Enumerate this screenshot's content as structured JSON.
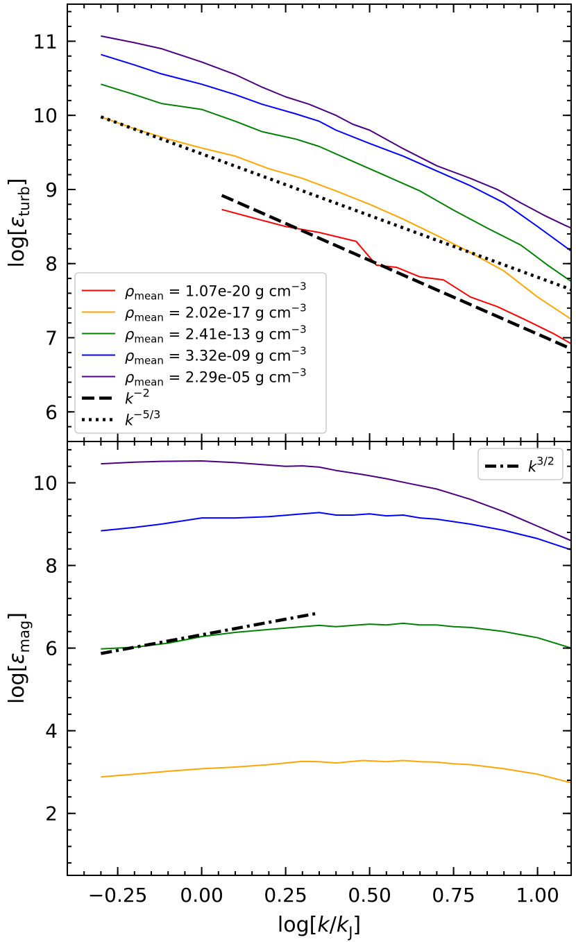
{
  "chart_data": [
    {
      "type": "line",
      "panel": "top",
      "xlabel": "log[k/kJ]",
      "ylabel": "log[εturb]",
      "xlim": [
        -0.4,
        1.1
      ],
      "ylim": [
        5.6,
        11.5
      ],
      "yticks": [
        6,
        7,
        8,
        9,
        10,
        11
      ],
      "xticks": [
        -0.25,
        0.0,
        0.25,
        0.5,
        0.75,
        1.0
      ],
      "legend_position": "lower-left",
      "series": [
        {
          "name": "ρmean = 1.07e-20 g cm−3",
          "color": "#ff0000",
          "style": "solid",
          "x": [
            0.06,
            0.15,
            0.25,
            0.35,
            0.46,
            0.52,
            0.58,
            0.65,
            0.72,
            0.8,
            0.88,
            0.96,
            1.05,
            1.1
          ],
          "y": [
            8.73,
            8.62,
            8.5,
            8.42,
            8.3,
            7.98,
            7.95,
            7.82,
            7.78,
            7.55,
            7.42,
            7.25,
            7.05,
            6.92
          ]
        },
        {
          "name": "ρmean = 2.02e-17 g cm−3",
          "color": "#ffa500",
          "style": "solid",
          "x": [
            -0.3,
            -0.2,
            -0.1,
            0.0,
            0.1,
            0.2,
            0.3,
            0.4,
            0.5,
            0.6,
            0.7,
            0.8,
            0.9,
            1.0,
            1.1
          ],
          "y": [
            9.98,
            9.82,
            9.68,
            9.56,
            9.45,
            9.28,
            9.15,
            8.98,
            8.8,
            8.6,
            8.38,
            8.15,
            7.9,
            7.55,
            7.25
          ]
        },
        {
          "name": "ρmean = 2.41e-13 g cm−3",
          "color": "#008000",
          "style": "solid",
          "x": [
            -0.3,
            -0.2,
            -0.12,
            0.0,
            0.1,
            0.18,
            0.28,
            0.35,
            0.45,
            0.55,
            0.65,
            0.75,
            0.85,
            0.95,
            1.03,
            1.1
          ],
          "y": [
            10.42,
            10.28,
            10.16,
            10.08,
            9.92,
            9.78,
            9.68,
            9.58,
            9.38,
            9.18,
            8.98,
            8.72,
            8.48,
            8.25,
            7.98,
            7.76
          ]
        },
        {
          "name": "ρmean = 3.32e-09 g cm−3",
          "color": "#0000ff",
          "style": "solid",
          "x": [
            -0.3,
            -0.2,
            -0.12,
            0.0,
            0.1,
            0.18,
            0.28,
            0.35,
            0.4,
            0.5,
            0.6,
            0.7,
            0.8,
            0.9,
            1.0,
            1.1
          ],
          "y": [
            10.82,
            10.68,
            10.56,
            10.42,
            10.28,
            10.15,
            10.02,
            9.92,
            9.8,
            9.62,
            9.45,
            9.25,
            9.05,
            8.82,
            8.5,
            8.17
          ]
        },
        {
          "name": "ρmean = 2.29e-05 g cm−3",
          "color": "#4b0082",
          "style": "solid",
          "x": [
            -0.3,
            -0.2,
            -0.12,
            0.0,
            0.1,
            0.18,
            0.25,
            0.32,
            0.4,
            0.45,
            0.5,
            0.6,
            0.7,
            0.8,
            0.88,
            0.95,
            1.02,
            1.08,
            1.1
          ],
          "y": [
            11.07,
            10.98,
            10.9,
            10.72,
            10.55,
            10.38,
            10.25,
            10.15,
            10.0,
            9.88,
            9.8,
            9.55,
            9.32,
            9.15,
            9.0,
            8.82,
            8.65,
            8.52,
            8.48
          ]
        },
        {
          "name": "k−2",
          "color": "#000000",
          "style": "dashed",
          "x": [
            0.06,
            1.1
          ],
          "y": [
            8.92,
            6.85
          ]
        },
        {
          "name": "k−5/3",
          "color": "#000000",
          "style": "dotted",
          "x": [
            -0.3,
            1.1
          ],
          "y": [
            9.98,
            7.65
          ]
        }
      ]
    },
    {
      "type": "line",
      "panel": "bottom",
      "xlabel": "log[k/kJ]",
      "ylabel": "log[εmag]",
      "xlim": [
        -0.4,
        1.1
      ],
      "ylim": [
        0.5,
        11.0
      ],
      "yticks": [
        2,
        4,
        6,
        8,
        10
      ],
      "xticks": [
        -0.25,
        0.0,
        0.25,
        0.5,
        0.75,
        1.0
      ],
      "xticklabels": [
        "−0.25",
        "0.00",
        "0.25",
        "0.50",
        "0.75",
        "1.00"
      ],
      "legend_position": "upper-right",
      "series": [
        {
          "name": "",
          "color": "#4b0082",
          "style": "solid",
          "x": [
            -0.3,
            -0.2,
            -0.12,
            0.0,
            0.1,
            0.18,
            0.25,
            0.3,
            0.35,
            0.4,
            0.48,
            0.55,
            0.62,
            0.7,
            0.8,
            0.9,
            1.0,
            1.1
          ],
          "y": [
            10.46,
            10.5,
            10.52,
            10.53,
            10.49,
            10.44,
            10.4,
            10.41,
            10.38,
            10.3,
            10.2,
            10.1,
            9.98,
            9.85,
            9.6,
            9.3,
            8.95,
            8.6
          ]
        },
        {
          "name": "",
          "color": "#0000ff",
          "style": "solid",
          "x": [
            -0.3,
            -0.2,
            -0.12,
            0.0,
            0.1,
            0.2,
            0.3,
            0.35,
            0.4,
            0.45,
            0.5,
            0.55,
            0.6,
            0.65,
            0.7,
            0.8,
            0.9,
            1.0,
            1.1
          ],
          "y": [
            8.84,
            8.92,
            9.0,
            9.15,
            9.15,
            9.18,
            9.25,
            9.28,
            9.22,
            9.22,
            9.25,
            9.2,
            9.22,
            9.15,
            9.12,
            9.0,
            8.85,
            8.65,
            8.38
          ]
        },
        {
          "name": "",
          "color": "#008000",
          "style": "solid",
          "x": [
            -0.3,
            -0.2,
            -0.1,
            0.0,
            0.1,
            0.2,
            0.3,
            0.35,
            0.4,
            0.5,
            0.55,
            0.6,
            0.65,
            0.7,
            0.75,
            0.8,
            0.9,
            1.0,
            1.1
          ],
          "y": [
            5.98,
            6.02,
            6.12,
            6.28,
            6.38,
            6.45,
            6.52,
            6.55,
            6.52,
            6.58,
            6.56,
            6.6,
            6.56,
            6.56,
            6.52,
            6.5,
            6.4,
            6.25,
            6.0
          ]
        },
        {
          "name": "",
          "color": "#ffa500",
          "style": "solid",
          "x": [
            -0.3,
            -0.2,
            -0.1,
            0.0,
            0.1,
            0.2,
            0.3,
            0.35,
            0.4,
            0.48,
            0.55,
            0.6,
            0.65,
            0.7,
            0.75,
            0.8,
            0.9,
            1.0,
            1.1
          ],
          "y": [
            2.88,
            2.95,
            3.02,
            3.08,
            3.12,
            3.18,
            3.26,
            3.25,
            3.22,
            3.28,
            3.25,
            3.28,
            3.25,
            3.24,
            3.2,
            3.18,
            3.08,
            2.95,
            2.74
          ]
        },
        {
          "name": "k3/2",
          "color": "#000000",
          "style": "dashdot",
          "x": [
            -0.3,
            0.35
          ],
          "y": [
            5.87,
            6.85
          ]
        }
      ]
    }
  ]
}
